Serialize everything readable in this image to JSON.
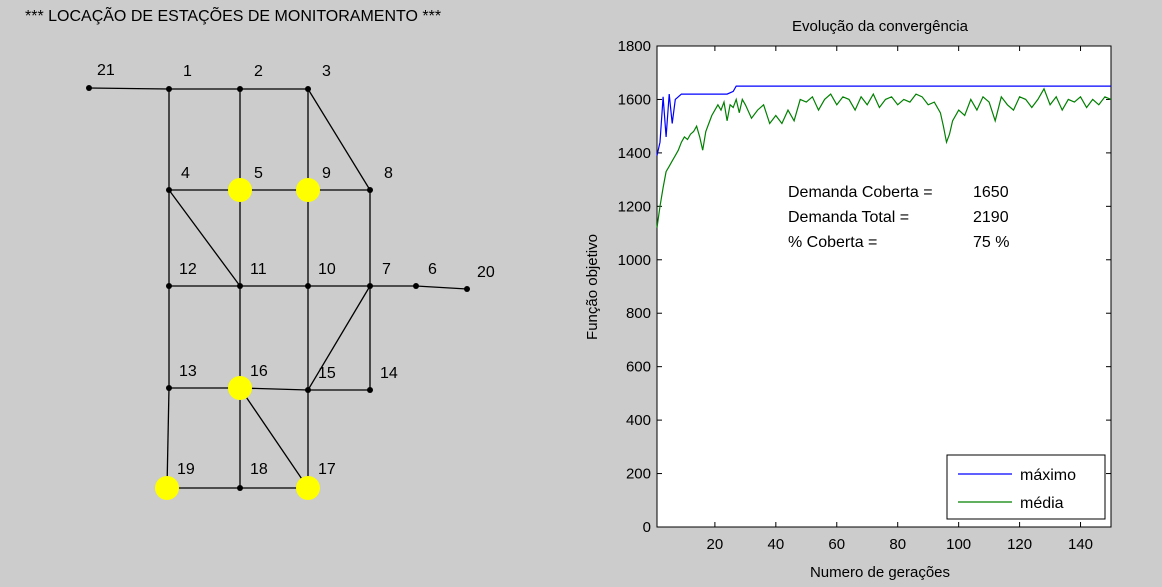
{
  "network_panel": {
    "title": "*** LOCAÇÃO DE ESTAÇÕES DE MONITORAMENTO ***",
    "nodes": [
      {
        "id": "1",
        "label": "1"
      },
      {
        "id": "2",
        "label": "2"
      },
      {
        "id": "3",
        "label": "3"
      },
      {
        "id": "4",
        "label": "4"
      },
      {
        "id": "5",
        "label": "5",
        "station": true
      },
      {
        "id": "6",
        "label": "6"
      },
      {
        "id": "7",
        "label": "7"
      },
      {
        "id": "8",
        "label": "8"
      },
      {
        "id": "9",
        "label": "9",
        "station": true
      },
      {
        "id": "10",
        "label": "10"
      },
      {
        "id": "11",
        "label": "11"
      },
      {
        "id": "12",
        "label": "12"
      },
      {
        "id": "13",
        "label": "13"
      },
      {
        "id": "14",
        "label": "14"
      },
      {
        "id": "15",
        "label": "15"
      },
      {
        "id": "16",
        "label": "16",
        "station": true
      },
      {
        "id": "17",
        "label": "17",
        "station": true
      },
      {
        "id": "18",
        "label": "18"
      },
      {
        "id": "19",
        "label": "19",
        "station": true
      },
      {
        "id": "20",
        "label": "20"
      },
      {
        "id": "21",
        "label": "21"
      }
    ],
    "edges": [
      [
        "21",
        "1"
      ],
      [
        "1",
        "2"
      ],
      [
        "2",
        "3"
      ],
      [
        "1",
        "4"
      ],
      [
        "2",
        "5"
      ],
      [
        "3",
        "9"
      ],
      [
        "3",
        "8"
      ],
      [
        "4",
        "5"
      ],
      [
        "5",
        "9"
      ],
      [
        "9",
        "8"
      ],
      [
        "4",
        "12"
      ],
      [
        "4",
        "11"
      ],
      [
        "5",
        "11"
      ],
      [
        "9",
        "10"
      ],
      [
        "8",
        "7"
      ],
      [
        "12",
        "11"
      ],
      [
        "11",
        "10"
      ],
      [
        "10",
        "7"
      ],
      [
        "7",
        "6"
      ],
      [
        "6",
        "20"
      ],
      [
        "12",
        "13"
      ],
      [
        "11",
        "16"
      ],
      [
        "10",
        "15"
      ],
      [
        "7",
        "15"
      ],
      [
        "7",
        "14"
      ],
      [
        "13",
        "16"
      ],
      [
        "16",
        "15"
      ],
      [
        "15",
        "14"
      ],
      [
        "13",
        "19"
      ],
      [
        "16",
        "18"
      ],
      [
        "16",
        "17"
      ],
      [
        "15",
        "17"
      ],
      [
        "19",
        "18"
      ],
      [
        "18",
        "17"
      ]
    ]
  },
  "chart_data": {
    "type": "line",
    "title": "Evolução da convergência",
    "xlabel": "Numero de gerações",
    "ylabel": "Função objetivo",
    "xlim": [
      1,
      150
    ],
    "ylim": [
      0,
      1800
    ],
    "xticks": [
      20,
      40,
      60,
      80,
      100,
      120,
      140
    ],
    "yticks": [
      0,
      200,
      400,
      600,
      800,
      1000,
      1200,
      1400,
      1600,
      1800
    ],
    "grid": false,
    "legend_position": "bottom-right",
    "series": [
      {
        "name": "máximo",
        "color": "#0000ff",
        "x": [
          1,
          2,
          3,
          4,
          5,
          6,
          7,
          8,
          9,
          10,
          12,
          14,
          16,
          20,
          24,
          26,
          27,
          28,
          30,
          40,
          60,
          80,
          100,
          120,
          140,
          150
        ],
        "y": [
          1390,
          1440,
          1610,
          1460,
          1620,
          1510,
          1600,
          1610,
          1620,
          1620,
          1620,
          1620,
          1620,
          1620,
          1620,
          1630,
          1650,
          1650,
          1650,
          1650,
          1650,
          1650,
          1650,
          1650,
          1650,
          1650
        ]
      },
      {
        "name": "média",
        "color": "#008000",
        "x": [
          1,
          2,
          3,
          4,
          5,
          6,
          7,
          8,
          9,
          10,
          11,
          12,
          13,
          14,
          15,
          16,
          17,
          18,
          19,
          20,
          21,
          22,
          23,
          24,
          25,
          26,
          27,
          28,
          29,
          30,
          32,
          34,
          36,
          38,
          40,
          42,
          44,
          46,
          48,
          50,
          52,
          54,
          56,
          58,
          60,
          62,
          64,
          66,
          68,
          70,
          72,
          74,
          76,
          78,
          80,
          82,
          84,
          86,
          88,
          90,
          92,
          94,
          95,
          96,
          97,
          98,
          100,
          102,
          104,
          106,
          108,
          110,
          112,
          114,
          116,
          118,
          120,
          122,
          124,
          126,
          128,
          130,
          132,
          134,
          136,
          138,
          140,
          142,
          144,
          146,
          148,
          150
        ],
        "y": [
          1120,
          1200,
          1270,
          1330,
          1350,
          1370,
          1390,
          1410,
          1440,
          1460,
          1450,
          1470,
          1480,
          1500,
          1460,
          1410,
          1480,
          1510,
          1540,
          1560,
          1580,
          1560,
          1590,
          1520,
          1580,
          1570,
          1600,
          1550,
          1600,
          1580,
          1530,
          1560,
          1580,
          1510,
          1540,
          1510,
          1560,
          1520,
          1600,
          1590,
          1610,
          1560,
          1600,
          1620,
          1580,
          1610,
          1600,
          1560,
          1610,
          1580,
          1620,
          1570,
          1600,
          1610,
          1580,
          1600,
          1590,
          1620,
          1610,
          1580,
          1590,
          1550,
          1500,
          1440,
          1470,
          1520,
          1560,
          1540,
          1600,
          1560,
          1610,
          1590,
          1520,
          1610,
          1580,
          1560,
          1610,
          1600,
          1570,
          1600,
          1640,
          1580,
          1610,
          1560,
          1600,
          1590,
          1610,
          1570,
          1600,
          1580,
          1610,
          1600
        ]
      }
    ],
    "annotations": [
      {
        "label": "Demanda Coberta =",
        "value": "1650"
      },
      {
        "label": "Demanda Total =",
        "value": "2190"
      },
      {
        "label": "% Coberta =",
        "value": "75  %"
      }
    ]
  }
}
